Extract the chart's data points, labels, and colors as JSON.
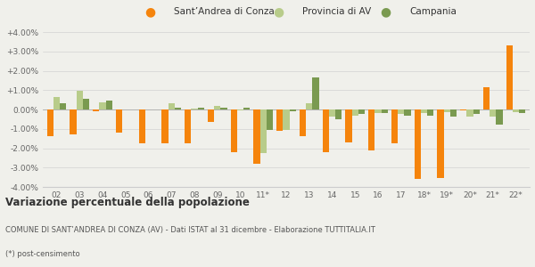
{
  "years": [
    "02",
    "03",
    "04",
    "05",
    "06",
    "07",
    "08",
    "09",
    "10",
    "11*",
    "12",
    "13",
    "14",
    "15",
    "16",
    "17",
    "18*",
    "19*",
    "20*",
    "21*",
    "22*"
  ],
  "santandrea": [
    -1.4,
    -1.3,
    -0.1,
    -1.2,
    -1.75,
    -1.75,
    -1.75,
    -0.65,
    -2.2,
    -2.8,
    -1.1,
    -1.4,
    -2.2,
    -1.7,
    -2.1,
    -1.75,
    -3.6,
    -3.55,
    -0.05,
    1.15,
    3.3
  ],
  "provincia": [
    0.65,
    0.95,
    0.35,
    0.0,
    0.0,
    0.3,
    0.05,
    0.2,
    -0.05,
    -2.25,
    -1.05,
    0.3,
    -0.35,
    -0.3,
    -0.2,
    -0.25,
    -0.2,
    -0.15,
    -0.35,
    -0.35,
    -0.15
  ],
  "campania": [
    0.3,
    0.55,
    0.45,
    0.0,
    0.0,
    0.1,
    0.1,
    0.1,
    0.1,
    -1.05,
    -0.1,
    1.65,
    -0.5,
    -0.25,
    -0.2,
    -0.3,
    -0.3,
    -0.35,
    -0.25,
    -0.8,
    -0.2
  ],
  "color_santandrea": "#f5840c",
  "color_provincia": "#b8cc8a",
  "color_campania": "#7a9a50",
  "ylim": [
    -4.0,
    4.0
  ],
  "yticks": [
    -4.0,
    -3.0,
    -2.0,
    -1.0,
    0.0,
    1.0,
    2.0,
    3.0,
    4.0
  ],
  "title": "Variazione percentuale della popolazione",
  "subtitle": "COMUNE DI SANT’ANDREA DI CONZA (AV) - Dati ISTAT al 31 dicembre - Elaborazione TUTTITALIA.IT",
  "footnote": "(*) post-censimento",
  "legend_labels": [
    "Sant’Andrea di Conza",
    "Provincia di AV",
    "Campania"
  ],
  "background_color": "#f0f0eb",
  "bar_width": 0.28
}
